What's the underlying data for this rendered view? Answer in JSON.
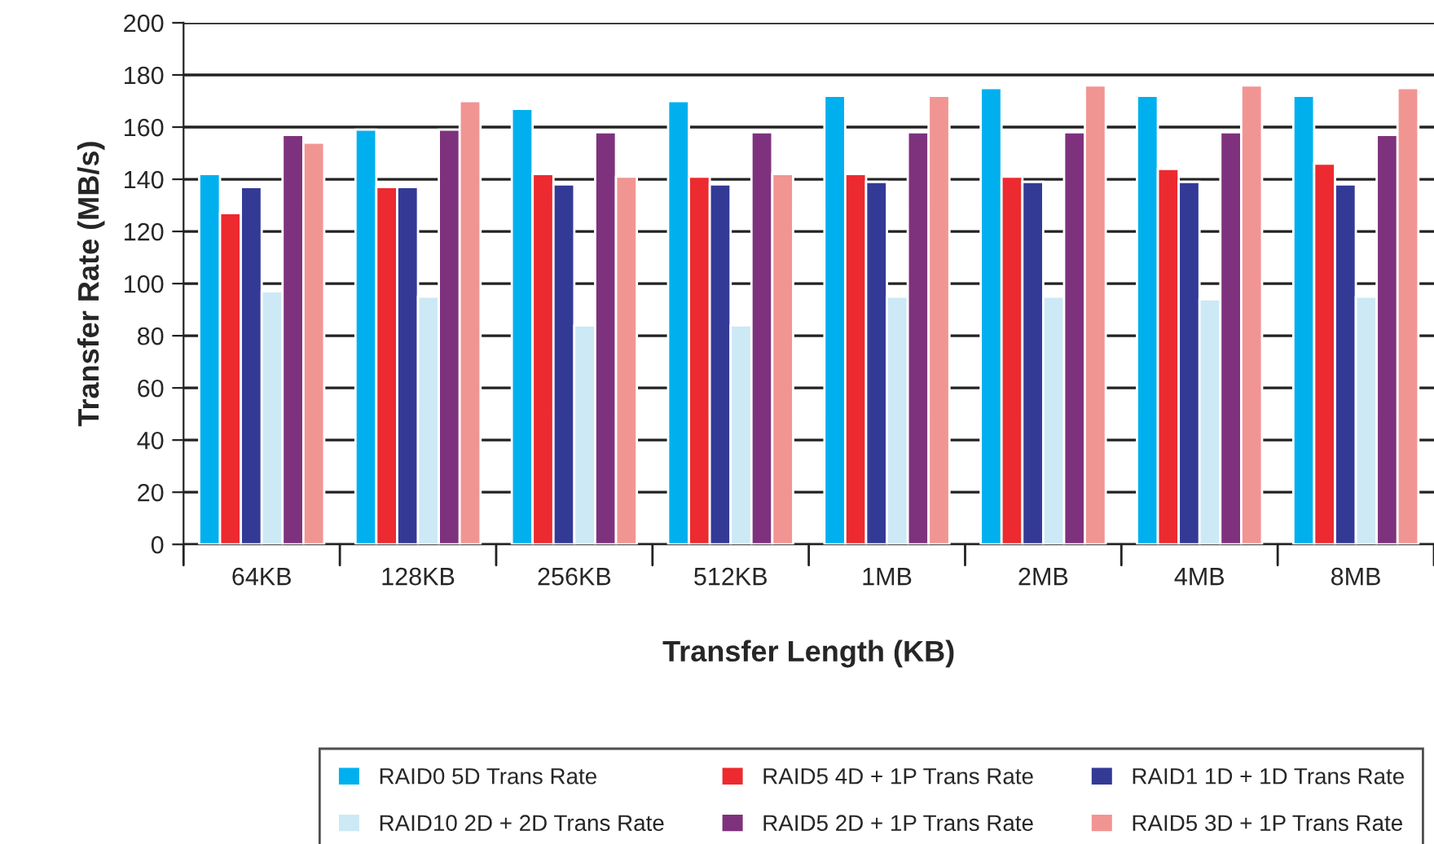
{
  "chart_data": {
    "type": "bar",
    "xlabel": "Transfer Length (KB)",
    "ylabel": "Transfer Rate (MB/s)",
    "categories": [
      "64KB",
      "128KB",
      "256KB",
      "512KB",
      "1MB",
      "2MB",
      "4MB",
      "8MB"
    ],
    "series": [
      {
        "name": "RAID0 5D Trans Rate",
        "color": "#00b0ee",
        "values": [
          142,
          159,
          167,
          170,
          172,
          175,
          172,
          172
        ]
      },
      {
        "name": "RAID5 4D + 1P Trans Rate",
        "color": "#ec2a30",
        "values": [
          127,
          137,
          142,
          141,
          142,
          141,
          144,
          146
        ]
      },
      {
        "name": "RAID1 1D + 1D Trans Rate",
        "color": "#333a96",
        "values": [
          137,
          137,
          138,
          138,
          139,
          139,
          139,
          138
        ]
      },
      {
        "name": "RAID10 2D + 2D Trans Rate",
        "color": "#cce9f5",
        "values": [
          97,
          95,
          84,
          84,
          95,
          95,
          94,
          95
        ]
      },
      {
        "name": "RAID5 2D + 1P Trans Rate",
        "color": "#7e327d",
        "values": [
          157,
          159,
          158,
          158,
          158,
          158,
          158,
          157
        ]
      },
      {
        "name": "RAID5 3D + 1P Trans Rate",
        "color": "#f19593",
        "values": [
          154,
          170,
          141,
          142,
          172,
          176,
          176,
          175
        ]
      }
    ],
    "ylim": [
      0,
      200
    ],
    "yticks": [
      0,
      20,
      40,
      60,
      80,
      100,
      120,
      140,
      160,
      180,
      200
    ],
    "grid": "y",
    "legend": "bottom"
  }
}
